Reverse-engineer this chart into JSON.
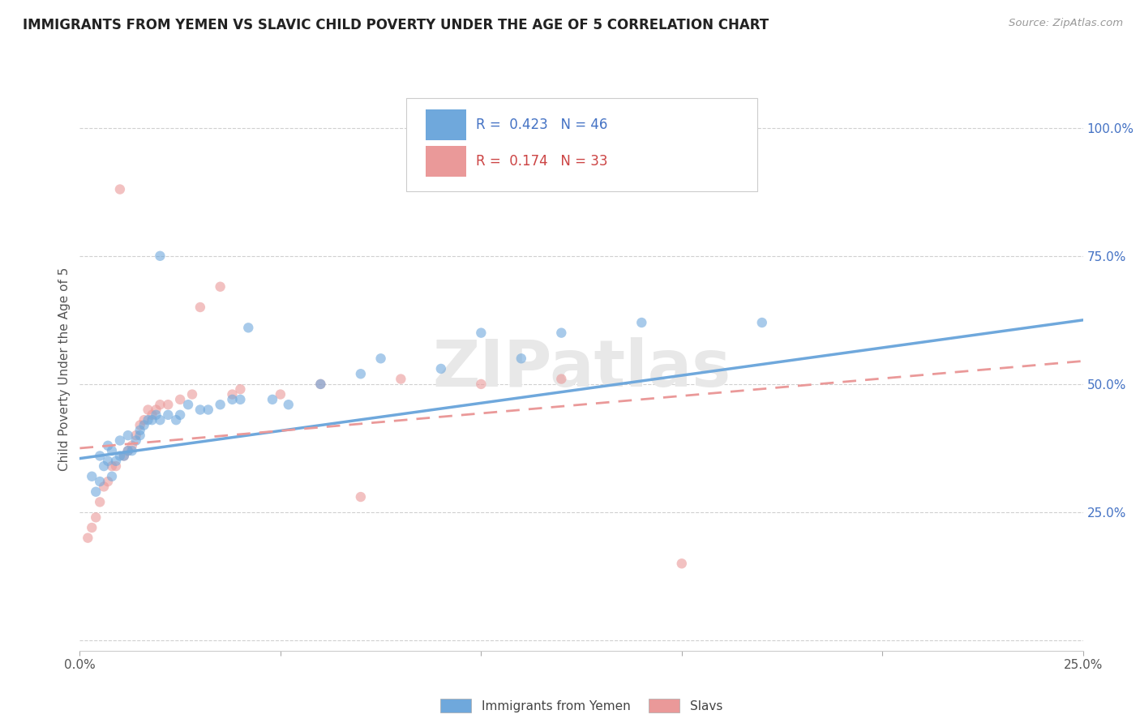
{
  "title": "IMMIGRANTS FROM YEMEN VS SLAVIC CHILD POVERTY UNDER THE AGE OF 5 CORRELATION CHART",
  "source": "Source: ZipAtlas.com",
  "ylabel": "Child Poverty Under the Age of 5",
  "xlim": [
    0.0,
    0.25
  ],
  "ylim": [
    -0.02,
    1.08
  ],
  "y_ticks_right": [
    0.0,
    0.25,
    0.5,
    0.75,
    1.0
  ],
  "y_tick_labels_right": [
    "",
    "25.0%",
    "50.0%",
    "75.0%",
    "100.0%"
  ],
  "legend1_label": "Immigrants from Yemen",
  "legend1_color": "#6fa8dc",
  "legend1_R": "0.423",
  "legend1_N": "46",
  "legend2_label": "Slavs",
  "legend2_color": "#ea9999",
  "legend2_R": "0.174",
  "legend2_N": "33",
  "blue_scatter_x": [
    0.003,
    0.004,
    0.005,
    0.005,
    0.006,
    0.007,
    0.007,
    0.008,
    0.008,
    0.009,
    0.01,
    0.01,
    0.011,
    0.012,
    0.012,
    0.013,
    0.014,
    0.015,
    0.015,
    0.016,
    0.017,
    0.018,
    0.019,
    0.02,
    0.02,
    0.022,
    0.024,
    0.025,
    0.027,
    0.03,
    0.032,
    0.035,
    0.038,
    0.04,
    0.042,
    0.048,
    0.052,
    0.06,
    0.075,
    0.09,
    0.1,
    0.11,
    0.12,
    0.14,
    0.17,
    0.07
  ],
  "blue_scatter_y": [
    0.32,
    0.29,
    0.31,
    0.36,
    0.34,
    0.35,
    0.38,
    0.32,
    0.37,
    0.35,
    0.36,
    0.39,
    0.36,
    0.37,
    0.4,
    0.37,
    0.39,
    0.4,
    0.41,
    0.42,
    0.43,
    0.43,
    0.44,
    0.43,
    0.75,
    0.44,
    0.43,
    0.44,
    0.46,
    0.45,
    0.45,
    0.46,
    0.47,
    0.47,
    0.61,
    0.47,
    0.46,
    0.5,
    0.55,
    0.53,
    0.6,
    0.55,
    0.6,
    0.62,
    0.62,
    0.52
  ],
  "pink_scatter_x": [
    0.002,
    0.003,
    0.004,
    0.005,
    0.006,
    0.007,
    0.008,
    0.009,
    0.01,
    0.011,
    0.012,
    0.013,
    0.014,
    0.015,
    0.016,
    0.017,
    0.018,
    0.019,
    0.02,
    0.022,
    0.025,
    0.028,
    0.03,
    0.035,
    0.038,
    0.04,
    0.05,
    0.06,
    0.07,
    0.08,
    0.1,
    0.12,
    0.15
  ],
  "pink_scatter_y": [
    0.2,
    0.22,
    0.24,
    0.27,
    0.3,
    0.31,
    0.34,
    0.34,
    0.88,
    0.36,
    0.37,
    0.38,
    0.4,
    0.42,
    0.43,
    0.45,
    0.44,
    0.45,
    0.46,
    0.46,
    0.47,
    0.48,
    0.65,
    0.69,
    0.48,
    0.49,
    0.48,
    0.5,
    0.28,
    0.51,
    0.5,
    0.51,
    0.15
  ],
  "blue_line_x": [
    0.0,
    0.25
  ],
  "blue_line_y": [
    0.355,
    0.625
  ],
  "pink_line_x": [
    0.0,
    0.25
  ],
  "pink_line_y": [
    0.375,
    0.545
  ],
  "background_color": "#ffffff",
  "grid_color": "#d0d0d0",
  "scatter_size": 80,
  "scatter_alpha": 0.6
}
